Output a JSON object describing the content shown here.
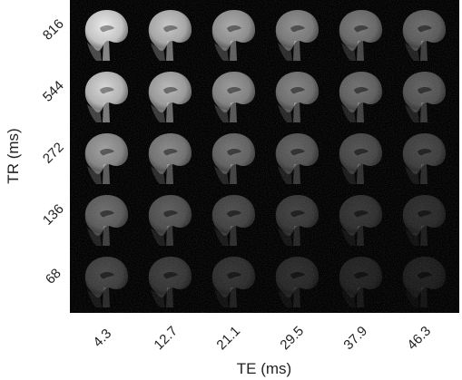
{
  "figure": {
    "x_axis_title": "TE (ms)",
    "y_axis_title": "TR (ms)",
    "te_values": [
      "4.3",
      "12.7",
      "21.1",
      "29.5",
      "37.9",
      "46.3"
    ],
    "tr_values": [
      "816",
      "544",
      "272",
      "136",
      "68"
    ],
    "background_color": "#000000",
    "tissue_color": "#ffffff",
    "description_pictorial": "grid of sagittal brain MRI slices; brightness decreases with longer TE and shorter TR",
    "brightness": [
      [
        0.92,
        0.78,
        0.66,
        0.56,
        0.48,
        0.42
      ],
      [
        0.84,
        0.72,
        0.6,
        0.51,
        0.44,
        0.38
      ],
      [
        0.62,
        0.53,
        0.45,
        0.38,
        0.32,
        0.28
      ],
      [
        0.42,
        0.36,
        0.3,
        0.25,
        0.21,
        0.18
      ],
      [
        0.28,
        0.24,
        0.2,
        0.17,
        0.14,
        0.12
      ]
    ]
  }
}
